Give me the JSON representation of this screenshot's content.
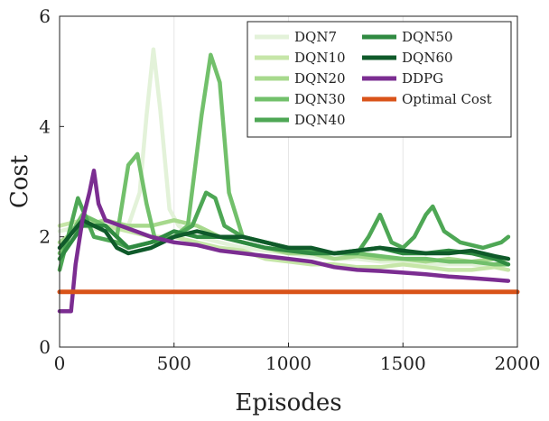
{
  "chart_data": {
    "type": "line",
    "xlabel": "Episodes",
    "ylabel": "Cost",
    "xlim": [
      0,
      2000
    ],
    "ylim": [
      0,
      6
    ],
    "xticks": [
      0,
      500,
      1000,
      1500,
      2000
    ],
    "yticks": [
      0,
      2,
      4,
      6
    ],
    "grid": "vertical",
    "legend_position": "top-right",
    "series": [
      {
        "name": "DQN7",
        "color": "#e3f2d9",
        "x": [
          0,
          100,
          200,
          300,
          350,
          380,
          410,
          440,
          480,
          520,
          600,
          700,
          800,
          900,
          1000,
          1100,
          1200,
          1300,
          1400,
          1500,
          1600,
          1700,
          1800,
          1900,
          1960
        ],
        "y": [
          2.1,
          2.2,
          2.1,
          2.2,
          2.8,
          4.2,
          5.4,
          4.3,
          2.5,
          2.2,
          2.0,
          1.9,
          1.8,
          1.75,
          1.7,
          1.65,
          1.6,
          1.6,
          1.55,
          1.55,
          1.5,
          1.5,
          1.5,
          1.45,
          1.5
        ]
      },
      {
        "name": "DQN10",
        "color": "#c6e6a8",
        "x": [
          0,
          100,
          200,
          300,
          400,
          500,
          600,
          700,
          800,
          900,
          1000,
          1100,
          1200,
          1300,
          1400,
          1500,
          1600,
          1700,
          1800,
          1900,
          1960
        ],
        "y": [
          2.2,
          2.3,
          2.2,
          2.1,
          2.0,
          2.0,
          1.9,
          1.8,
          1.75,
          1.6,
          1.55,
          1.5,
          1.5,
          1.45,
          1.45,
          1.5,
          1.45,
          1.4,
          1.4,
          1.45,
          1.4
        ]
      },
      {
        "name": "DQN20",
        "color": "#a7d98d",
        "x": [
          0,
          100,
          200,
          300,
          400,
          500,
          600,
          700,
          800,
          900,
          1000,
          1100,
          1200,
          1300,
          1400,
          1500,
          1600,
          1700,
          1800,
          1900,
          1960
        ],
        "y": [
          1.9,
          2.2,
          2.3,
          2.2,
          2.2,
          2.3,
          2.2,
          2.0,
          1.9,
          1.8,
          1.7,
          1.7,
          1.6,
          1.65,
          1.6,
          1.6,
          1.55,
          1.6,
          1.55,
          1.6,
          1.6
        ]
      },
      {
        "name": "DQN30",
        "color": "#72c06b",
        "x": [
          0,
          100,
          200,
          250,
          300,
          340,
          380,
          420,
          500,
          560,
          620,
          660,
          700,
          740,
          800,
          900,
          1000,
          1100,
          1200,
          1300,
          1400,
          1500,
          1600,
          1700,
          1800,
          1900,
          1960
        ],
        "y": [
          1.7,
          2.4,
          2.2,
          2.0,
          3.3,
          3.5,
          2.6,
          1.9,
          2.0,
          2.2,
          4.2,
          5.3,
          4.8,
          2.8,
          2.0,
          1.9,
          1.8,
          1.75,
          1.7,
          1.7,
          1.65,
          1.6,
          1.6,
          1.55,
          1.55,
          1.5,
          1.5
        ]
      },
      {
        "name": "DQN40",
        "color": "#4ea755",
        "x": [
          0,
          80,
          150,
          250,
          300,
          400,
          500,
          580,
          640,
          680,
          720,
          800,
          900,
          1000,
          1100,
          1200,
          1300,
          1350,
          1400,
          1450,
          1500,
          1550,
          1600,
          1630,
          1680,
          1750,
          1850,
          1930,
          1960
        ],
        "y": [
          1.4,
          2.7,
          2.0,
          1.9,
          1.8,
          1.9,
          2.0,
          2.2,
          2.8,
          2.7,
          2.2,
          2.0,
          1.9,
          1.8,
          1.75,
          1.7,
          1.7,
          2.0,
          2.4,
          1.9,
          1.8,
          2.0,
          2.4,
          2.55,
          2.1,
          1.9,
          1.8,
          1.9,
          2.0
        ]
      },
      {
        "name": "DQN50",
        "color": "#2f8a41",
        "x": [
          0,
          100,
          200,
          300,
          400,
          500,
          600,
          700,
          800,
          900,
          1000,
          1100,
          1200,
          1300,
          1400,
          1500,
          1600,
          1700,
          1800,
          1900,
          1960
        ],
        "y": [
          1.6,
          2.2,
          2.2,
          1.8,
          1.9,
          2.1,
          2.0,
          2.0,
          1.9,
          1.8,
          1.75,
          1.7,
          1.7,
          1.75,
          1.8,
          1.7,
          1.7,
          1.75,
          1.7,
          1.6,
          1.5
        ]
      },
      {
        "name": "DQN60",
        "color": "#0f5a2a",
        "x": [
          0,
          100,
          200,
          250,
          300,
          400,
          500,
          600,
          700,
          800,
          900,
          1000,
          1100,
          1200,
          1300,
          1400,
          1500,
          1600,
          1700,
          1800,
          1900,
          1960
        ],
        "y": [
          1.8,
          2.3,
          2.1,
          1.8,
          1.7,
          1.8,
          2.0,
          2.1,
          2.0,
          2.0,
          1.9,
          1.8,
          1.8,
          1.7,
          1.75,
          1.8,
          1.75,
          1.7,
          1.7,
          1.75,
          1.65,
          1.6
        ]
      },
      {
        "name": "DDPG",
        "color": "#7b2d91",
        "x": [
          0,
          50,
          70,
          100,
          130,
          150,
          170,
          200,
          300,
          400,
          500,
          600,
          700,
          800,
          900,
          1000,
          1100,
          1200,
          1300,
          1400,
          1500,
          1600,
          1700,
          1800,
          1900,
          1960
        ],
        "y": [
          0.65,
          0.65,
          1.5,
          2.3,
          2.8,
          3.2,
          2.6,
          2.3,
          2.15,
          2.0,
          1.9,
          1.85,
          1.75,
          1.7,
          1.65,
          1.6,
          1.55,
          1.45,
          1.4,
          1.38,
          1.35,
          1.32,
          1.28,
          1.25,
          1.22,
          1.2
        ]
      },
      {
        "name": "Optimal Cost",
        "color": "#d95319",
        "x": [
          0,
          2000
        ],
        "y": [
          1.0,
          1.0
        ]
      }
    ]
  }
}
